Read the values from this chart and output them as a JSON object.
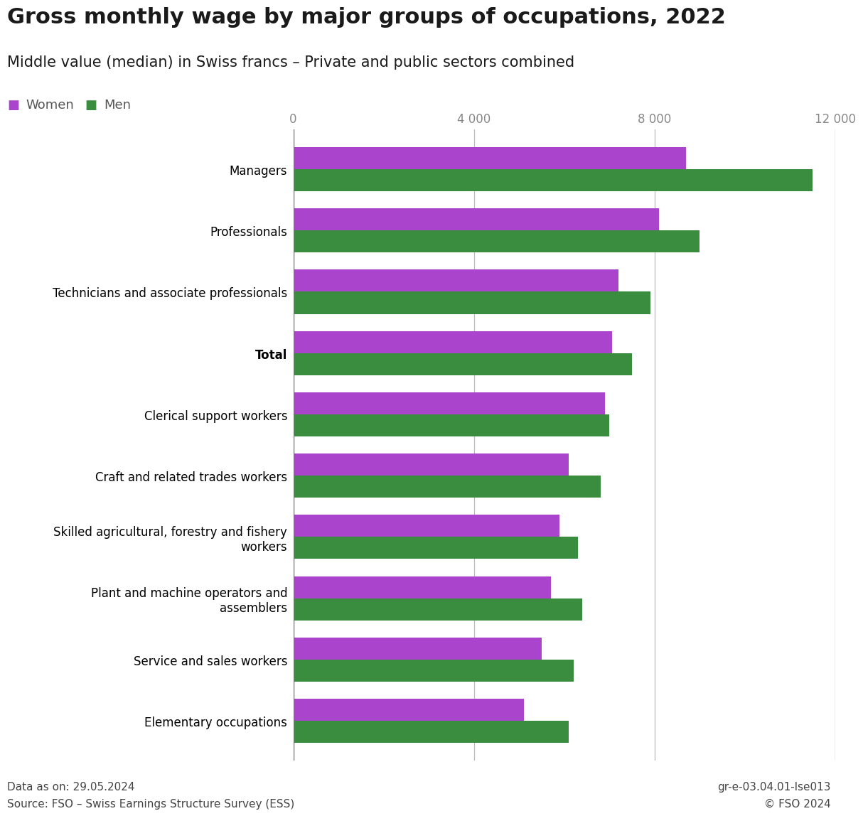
{
  "title": "Gross monthly wage by major groups of occupations, 2022",
  "subtitle": "Middle value (median) in Swiss francs – Private and public sectors combined",
  "categories": [
    "Elementary occupations",
    "Service and sales workers",
    "Plant and machine operators and\nassemblers",
    "Skilled agricultural, forestry and fishery\nworkers",
    "Craft and related trades workers",
    "Clerical support workers",
    "Total",
    "Technicians and associate professionals",
    "Professionals",
    "Managers"
  ],
  "women_values": [
    5100,
    5500,
    5700,
    5900,
    6100,
    6900,
    7050,
    7200,
    8100,
    8700
  ],
  "men_values": [
    6100,
    6200,
    6400,
    6300,
    6800,
    7000,
    7500,
    7900,
    9000,
    11500
  ],
  "women_color": "#aa44cc",
  "men_color": "#3a8c3f",
  "xlim": [
    0,
    12000
  ],
  "xticks": [
    0,
    4000,
    8000,
    12000
  ],
  "xtick_labels": [
    "0",
    "4 000",
    "8 000",
    "12 000"
  ],
  "footer_left1": "Data as on: 29.05.2024",
  "footer_left2": "Source: FSO – Swiss Earnings Structure Survey (ESS)",
  "footer_right1": "gr-e-03.04.01-lse013",
  "footer_right2": "© FSO 2024",
  "background_color": "#ffffff",
  "total_bold_index": 6
}
